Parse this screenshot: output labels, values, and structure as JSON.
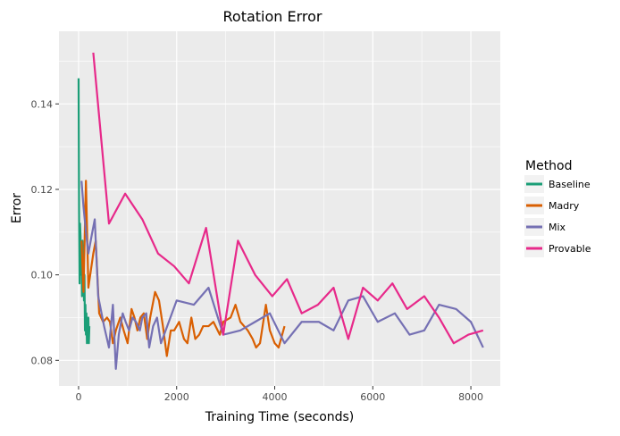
{
  "chart_data": {
    "type": "line",
    "title": "Rotation Error",
    "xlabel": "Training Time (seconds)",
    "ylabel": "Error",
    "xlim": [
      -400,
      8600
    ],
    "ylim": [
      0.074,
      0.157
    ],
    "xticks": [
      0,
      2000,
      4000,
      6000,
      8000
    ],
    "xtick_labels": [
      "0",
      "2000",
      "4000",
      "6000",
      "8000"
    ],
    "yticks": [
      0.08,
      0.1,
      0.12,
      0.14
    ],
    "ytick_labels": [
      "0.08",
      "0.10",
      "0.12",
      "0.14"
    ],
    "grid": true,
    "legend_position": "right",
    "legend_title": "Method",
    "series": [
      {
        "name": "Baseline",
        "color": "#1b9e77",
        "points": [
          [
            0,
            0.146
          ],
          [
            10,
            0.115
          ],
          [
            20,
            0.098
          ],
          [
            30,
            0.112
          ],
          [
            40,
            0.109
          ],
          [
            50,
            0.1
          ],
          [
            60,
            0.104
          ],
          [
            70,
            0.095
          ],
          [
            80,
            0.108
          ],
          [
            90,
            0.097
          ],
          [
            100,
            0.103
          ],
          [
            110,
            0.094
          ],
          [
            120,
            0.1
          ],
          [
            130,
            0.087
          ],
          [
            140,
            0.093
          ],
          [
            150,
            0.086
          ],
          [
            160,
            0.091
          ],
          [
            170,
            0.084
          ],
          [
            180,
            0.089
          ],
          [
            190,
            0.085
          ],
          [
            200,
            0.09
          ],
          [
            210,
            0.084
          ],
          [
            220,
            0.088
          ]
        ]
      },
      {
        "name": "Madry",
        "color": "#d95f02",
        "points": [
          [
            60,
            0.108
          ],
          [
            100,
            0.096
          ],
          [
            150,
            0.122
          ],
          [
            200,
            0.097
          ],
          [
            300,
            0.105
          ],
          [
            350,
            0.108
          ],
          [
            420,
            0.091
          ],
          [
            500,
            0.089
          ],
          [
            580,
            0.09
          ],
          [
            640,
            0.089
          ],
          [
            700,
            0.084
          ],
          [
            760,
            0.087
          ],
          [
            850,
            0.09
          ],
          [
            920,
            0.087
          ],
          [
            1000,
            0.084
          ],
          [
            1080,
            0.092
          ],
          [
            1140,
            0.09
          ],
          [
            1200,
            0.087
          ],
          [
            1260,
            0.09
          ],
          [
            1330,
            0.091
          ],
          [
            1400,
            0.085
          ],
          [
            1460,
            0.09
          ],
          [
            1560,
            0.096
          ],
          [
            1640,
            0.094
          ],
          [
            1720,
            0.088
          ],
          [
            1800,
            0.081
          ],
          [
            1880,
            0.087
          ],
          [
            1950,
            0.087
          ],
          [
            2050,
            0.089
          ],
          [
            2150,
            0.085
          ],
          [
            2220,
            0.084
          ],
          [
            2300,
            0.09
          ],
          [
            2380,
            0.085
          ],
          [
            2460,
            0.086
          ],
          [
            2540,
            0.088
          ],
          [
            2650,
            0.088
          ],
          [
            2750,
            0.089
          ],
          [
            2880,
            0.086
          ],
          [
            2950,
            0.089
          ],
          [
            3100,
            0.09
          ],
          [
            3200,
            0.093
          ],
          [
            3300,
            0.089
          ],
          [
            3450,
            0.087
          ],
          [
            3550,
            0.085
          ],
          [
            3620,
            0.083
          ],
          [
            3700,
            0.084
          ],
          [
            3820,
            0.093
          ],
          [
            3900,
            0.087
          ],
          [
            4000,
            0.084
          ],
          [
            4080,
            0.083
          ],
          [
            4200,
            0.088
          ]
        ]
      },
      {
        "name": "Mix",
        "color": "#7570b3",
        "points": [
          [
            60,
            0.122
          ],
          [
            100,
            0.116
          ],
          [
            150,
            0.11
          ],
          [
            200,
            0.105
          ],
          [
            280,
            0.11
          ],
          [
            330,
            0.113
          ],
          [
            400,
            0.095
          ],
          [
            520,
            0.088
          ],
          [
            620,
            0.083
          ],
          [
            700,
            0.093
          ],
          [
            760,
            0.078
          ],
          [
            820,
            0.086
          ],
          [
            900,
            0.091
          ],
          [
            960,
            0.089
          ],
          [
            1030,
            0.087
          ],
          [
            1100,
            0.09
          ],
          [
            1170,
            0.089
          ],
          [
            1250,
            0.087
          ],
          [
            1300,
            0.09
          ],
          [
            1380,
            0.091
          ],
          [
            1440,
            0.083
          ],
          [
            1520,
            0.088
          ],
          [
            1600,
            0.09
          ],
          [
            1680,
            0.084
          ],
          [
            2000,
            0.094
          ],
          [
            2350,
            0.093
          ],
          [
            2650,
            0.097
          ],
          [
            2950,
            0.086
          ],
          [
            3300,
            0.087
          ],
          [
            3600,
            0.089
          ],
          [
            3900,
            0.091
          ],
          [
            4200,
            0.084
          ],
          [
            4550,
            0.089
          ],
          [
            4900,
            0.089
          ],
          [
            5200,
            0.087
          ],
          [
            5500,
            0.094
          ],
          [
            5800,
            0.095
          ],
          [
            6100,
            0.089
          ],
          [
            6450,
            0.091
          ],
          [
            6750,
            0.086
          ],
          [
            7050,
            0.087
          ],
          [
            7350,
            0.093
          ],
          [
            7700,
            0.092
          ],
          [
            8000,
            0.089
          ],
          [
            8250,
            0.083
          ]
        ]
      },
      {
        "name": "Provable",
        "color": "#e7298a",
        "points": [
          [
            300,
            0.152
          ],
          [
            620,
            0.112
          ],
          [
            950,
            0.119
          ],
          [
            1300,
            0.113
          ],
          [
            1620,
            0.105
          ],
          [
            1950,
            0.102
          ],
          [
            2250,
            0.098
          ],
          [
            2600,
            0.111
          ],
          [
            2950,
            0.086
          ],
          [
            3250,
            0.108
          ],
          [
            3600,
            0.1
          ],
          [
            3950,
            0.095
          ],
          [
            4250,
            0.099
          ],
          [
            4550,
            0.091
          ],
          [
            4880,
            0.093
          ],
          [
            5200,
            0.097
          ],
          [
            5500,
            0.085
          ],
          [
            5800,
            0.097
          ],
          [
            6100,
            0.094
          ],
          [
            6400,
            0.098
          ],
          [
            6700,
            0.092
          ],
          [
            7050,
            0.095
          ],
          [
            7350,
            0.09
          ],
          [
            7650,
            0.084
          ],
          [
            7950,
            0.086
          ],
          [
            8250,
            0.087
          ]
        ]
      }
    ]
  }
}
